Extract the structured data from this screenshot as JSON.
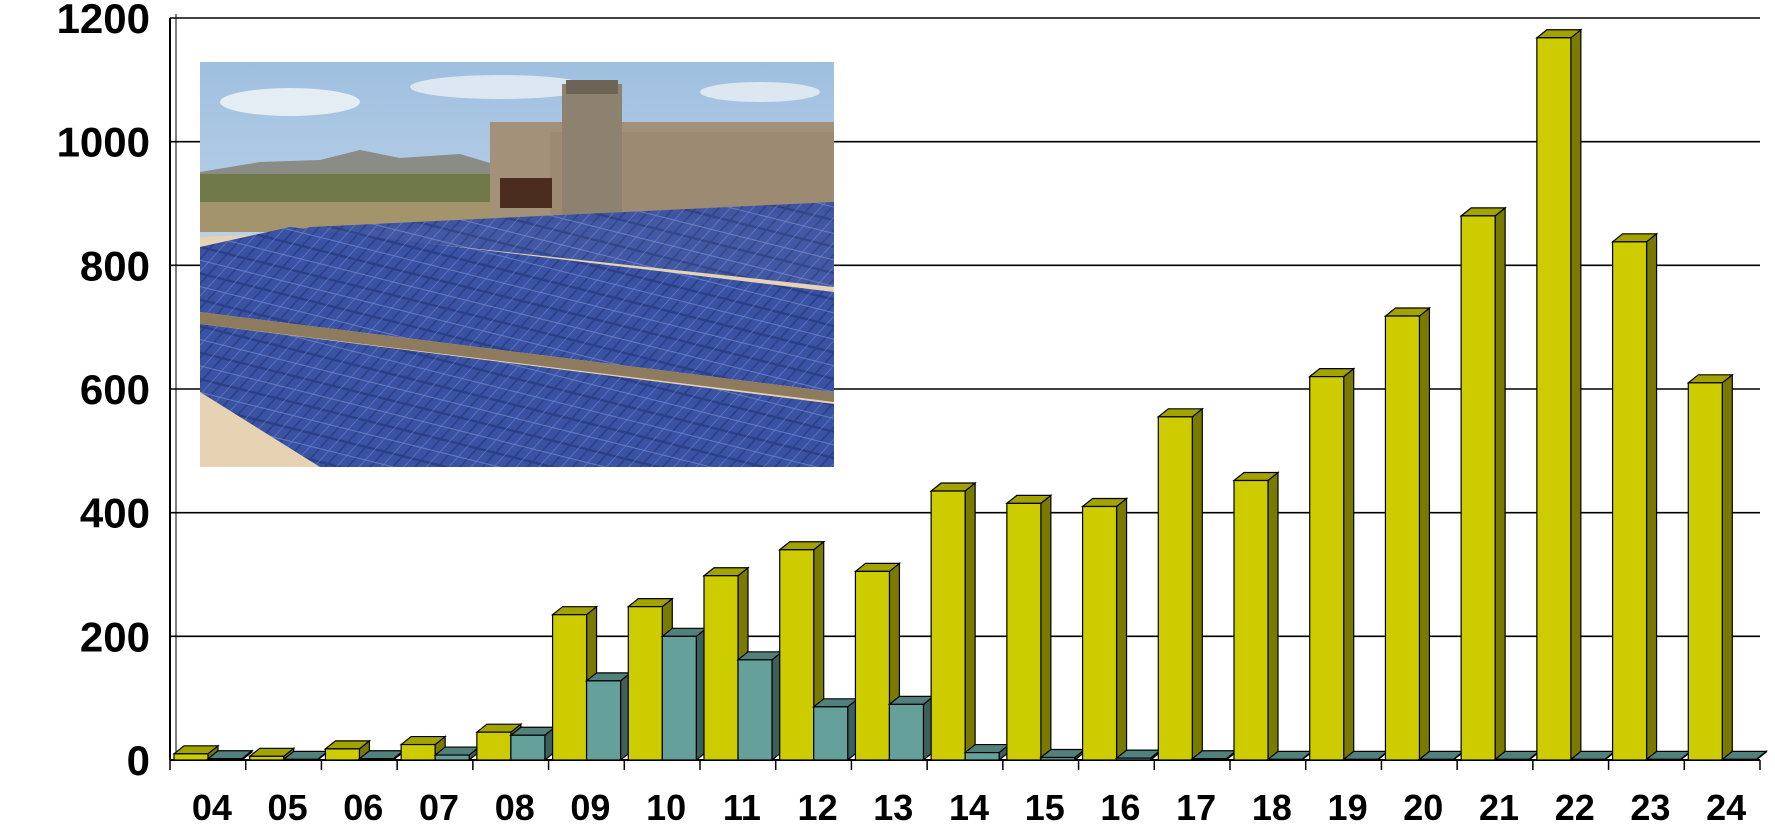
{
  "chart_data": {
    "type": "bar",
    "title": "",
    "xlabel": "",
    "ylabel": "",
    "categories": [
      "04",
      "05",
      "06",
      "07",
      "08",
      "09",
      "10",
      "11",
      "12",
      "13",
      "14",
      "15",
      "16",
      "17",
      "18",
      "19",
      "20",
      "21",
      "22",
      "23",
      "24"
    ],
    "series": [
      {
        "color": "#cccc00",
        "values": [
          10,
          6,
          18,
          25,
          45,
          235,
          248,
          298,
          340,
          305,
          435,
          415,
          410,
          555,
          452,
          620,
          718,
          880,
          1168,
          838,
          610
        ]
      },
      {
        "color": "#66a09a",
        "values": [
          2,
          1,
          2,
          8,
          40,
          128,
          200,
          162,
          86,
          90,
          12,
          4,
          3,
          2,
          1,
          1,
          1,
          1,
          1,
          1,
          1
        ]
      }
    ],
    "ylim": [
      0,
      1200
    ],
    "yticks": [
      0,
      200,
      400,
      600,
      800,
      1000,
      1200
    ],
    "grid": true,
    "legend": "none"
  },
  "inset_image": {
    "icon": "solar-panel-array-photo"
  }
}
